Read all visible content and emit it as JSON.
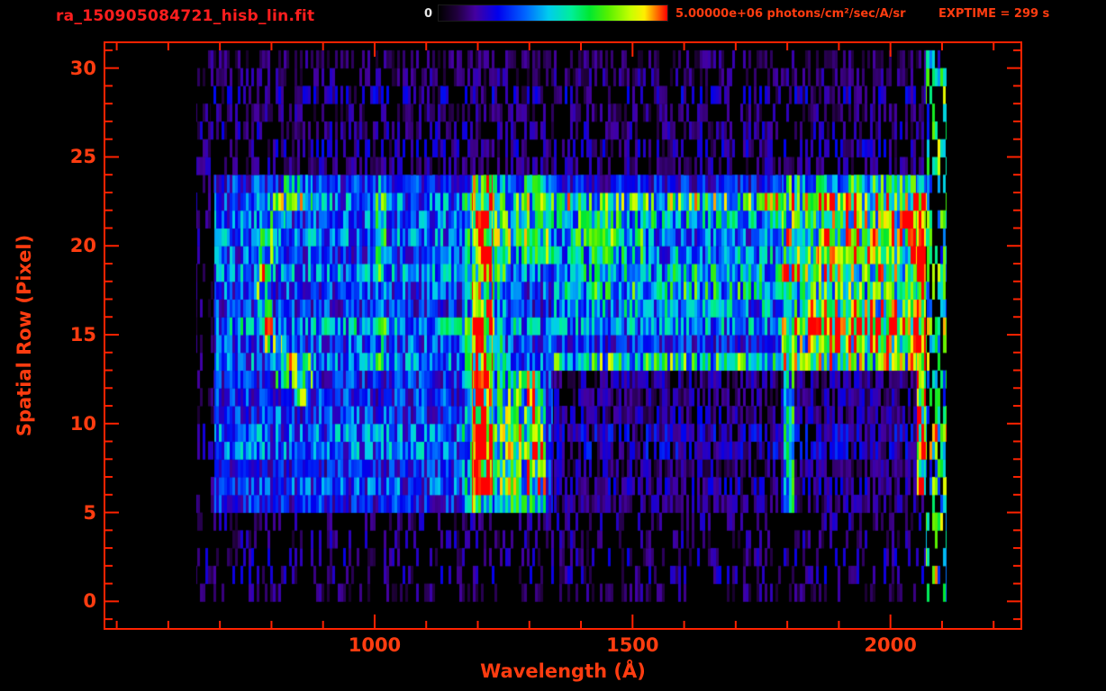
{
  "header": {
    "title": "ra_150905084721_hisb_lin.fit",
    "colorbar_min_label": "0",
    "colorbar_max_label": "5.00000e+06 photons/cm²/sec/A/sr",
    "exptime_label": "EXPTIME = 299 s"
  },
  "axes": {
    "x_label": "Wavelength (Å)",
    "y_label": "Spatial Row (Pixel)",
    "x_ticks": [
      1000,
      1500,
      2000
    ],
    "y_ticks": [
      0,
      5,
      10,
      15,
      20,
      25,
      30
    ],
    "x_minor_step": 100,
    "y_minor_step": 1,
    "x_range": [
      478,
      2252
    ],
    "y_range": [
      -1.5,
      31.4
    ]
  },
  "colors": {
    "background": "#000000",
    "frame": "#ff2200",
    "title": "#ff1e1e",
    "tick_label": "#ff3c10",
    "colorbar_zero": "#e8e8e8"
  },
  "chart_data": {
    "type": "heatmap",
    "title": "ra_150905084721_hisb_lin.fit",
    "xlabel": "Wavelength (Å)",
    "ylabel": "Spatial Row (Pixel)",
    "x_range_angstrom": [
      478,
      2252
    ],
    "y_range_rows": [
      -1.5,
      31.4
    ],
    "data_extent": {
      "wl": [
        655,
        2108
      ],
      "rows": [
        0,
        31
      ]
    },
    "intensity_scale": {
      "min": 0,
      "max": 5000000,
      "units": "photons/cm²/sec/A/sr"
    },
    "exposure_time_s": 299,
    "legend_position": "top",
    "grid": false,
    "colormap": [
      [
        0.0,
        "#000000"
      ],
      [
        0.08,
        "#20003c"
      ],
      [
        0.16,
        "#4400a0"
      ],
      [
        0.26,
        "#0000ee"
      ],
      [
        0.38,
        "#0066ff"
      ],
      [
        0.48,
        "#00ccee"
      ],
      [
        0.58,
        "#00ee99"
      ],
      [
        0.66,
        "#00e830"
      ],
      [
        0.74,
        "#55f000"
      ],
      [
        0.84,
        "#c8ff00"
      ],
      [
        0.9,
        "#ffee00"
      ],
      [
        0.95,
        "#ff7700"
      ],
      [
        1.0,
        "#ff0000"
      ]
    ],
    "features": [
      {
        "name": "background-speckle",
        "wl": [
          655,
          2075
        ],
        "rows": [
          0,
          31
        ],
        "amp": 0.14,
        "sparse": 0.68
      },
      {
        "name": "top-region-speckle",
        "wl": [
          680,
          2075
        ],
        "rows": [
          24.5,
          30.5
        ],
        "amp": 0.15,
        "sparse": 0.5
      },
      {
        "name": "upper-signal-band",
        "wl": [
          690,
          2070
        ],
        "rows": [
          13.5,
          24
        ],
        "amp": 0.34
      },
      {
        "name": "lower-signal-band",
        "wl": [
          690,
          1345
        ],
        "rows": [
          4.7,
          13.5
        ],
        "amp": 0.3
      },
      {
        "name": "lower-band-right",
        "wl": [
          1345,
          2055
        ],
        "rows": [
          4.7,
          13.5
        ],
        "amp": 0.17,
        "sparse": 0.25
      },
      {
        "name": "left-arc",
        "type": "arc",
        "center_wl": 855,
        "center_row": 17.8,
        "radius_wl": 70,
        "radius_row": 5.3,
        "thickness": 0.2,
        "open_offset": 25,
        "amp": 0.6
      },
      {
        "name": "emission-vline-1010",
        "wl": [
          1002,
          1022
        ],
        "rows": [
          13.5,
          24
        ],
        "amp": 0.5
      },
      {
        "name": "lyman-alpha-glow",
        "wl": [
          1170,
          1255
        ],
        "rows": [
          4.7,
          24
        ],
        "amp": 0.46
      },
      {
        "name": "lyman-alpha-line",
        "wl": [
          1188,
          1228
        ],
        "rows": [
          4.7,
          24
        ],
        "amp": 0.82
      },
      {
        "name": "lyman-alpha-hot-1",
        "wl": [
          1192,
          1224
        ],
        "rows": [
          6,
          8.5
        ],
        "amp": 1.0
      },
      {
        "name": "lyman-alpha-hot-2",
        "wl": [
          1192,
          1224
        ],
        "rows": [
          10,
          12.5
        ],
        "amp": 1.0
      },
      {
        "name": "lyman-alpha-hot-3",
        "wl": [
          1192,
          1224
        ],
        "rows": [
          19.5,
          22.5
        ],
        "amp": 0.92
      },
      {
        "name": "green-patch-lower",
        "wl": [
          1232,
          1332
        ],
        "rows": [
          5.5,
          13
        ],
        "amp": 0.6
      },
      {
        "name": "emission-vline-1300",
        "wl": [
          1295,
          1322
        ],
        "rows": [
          4.8,
          13.2
        ],
        "amp": 0.72
      },
      {
        "name": "green-patch-upper",
        "wl": [
          1230,
          1348
        ],
        "rows": [
          19,
          23.5
        ],
        "amp": 0.56
      },
      {
        "name": "mid-band-streaks",
        "wl": [
          1348,
          1795
        ],
        "rows": [
          13.5,
          23.5
        ],
        "amp": 0.4,
        "rowlines": true
      },
      {
        "name": "green-lines-1450",
        "wl": [
          1380,
          1545
        ],
        "rows": [
          19,
          22.5
        ],
        "amp": 0.52
      },
      {
        "name": "emission-vline-1800",
        "wl": [
          1793,
          1813
        ],
        "rows": [
          4.7,
          13.5
        ],
        "amp": 0.52
      },
      {
        "name": "right-bright-block",
        "wl": [
          1790,
          2068
        ],
        "rows": [
          13,
          23.5
        ],
        "amp": 0.62
      },
      {
        "name": "right-block-hot-row",
        "wl": [
          1840,
          2065
        ],
        "rows": [
          14,
          16.5
        ],
        "amp": 0.8
      },
      {
        "name": "right-block-hot-row2",
        "wl": [
          1860,
          2060
        ],
        "rows": [
          19.5,
          22.5
        ],
        "amp": 0.7
      },
      {
        "name": "red-edge-column",
        "wl": [
          2052,
          2068
        ],
        "rows": [
          6,
          24
        ],
        "amp": 0.92
      },
      {
        "name": "right-edge-speckles",
        "wl": [
          2068,
          2108
        ],
        "rows": [
          0,
          30.5
        ],
        "amp": 0.55,
        "sparse": 0.45
      }
    ]
  }
}
